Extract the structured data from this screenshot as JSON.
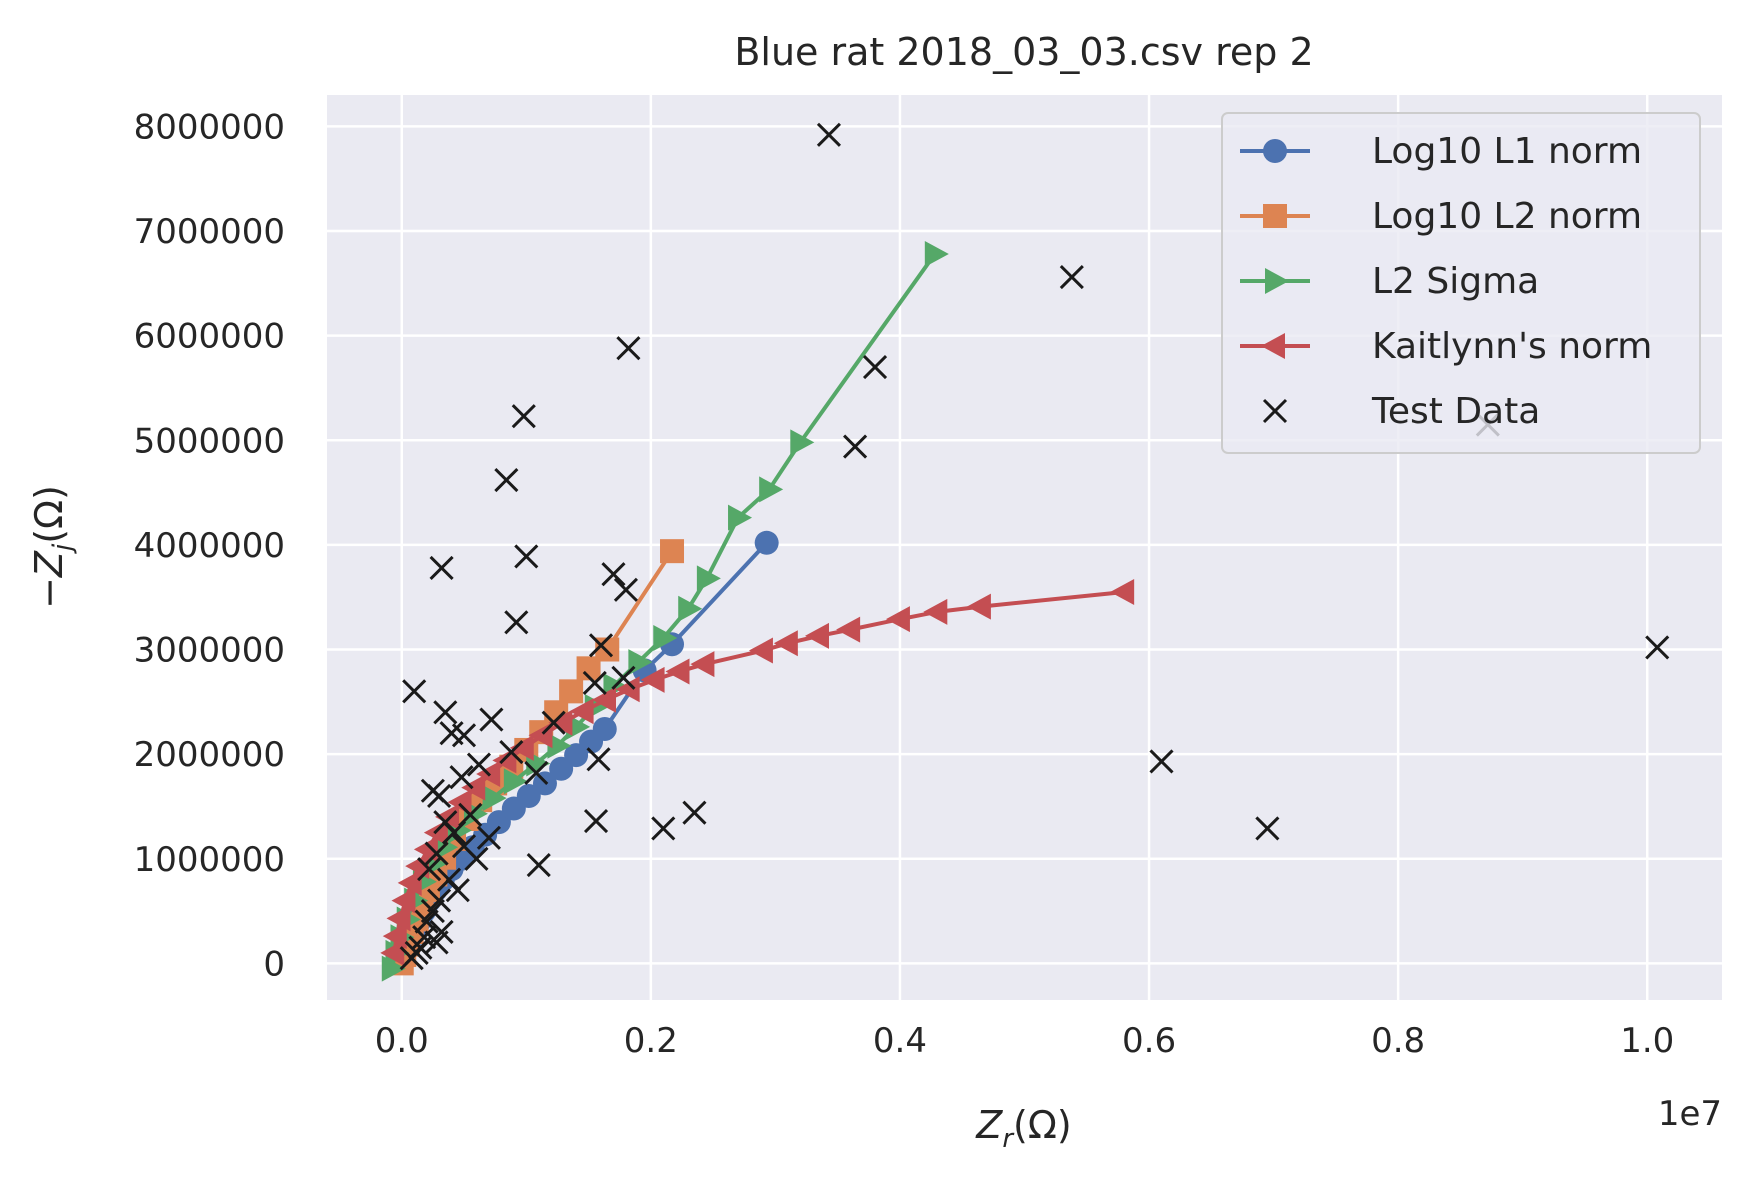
{
  "chart_data": {
    "type": "line",
    "title": "Blue rat 2018_03_03.csv rep 2",
    "xlabel_main": "Z",
    "xlabel_sub": "r",
    "xlabel_unit": "(Ω)",
    "ylabel_prefix": "−Z",
    "ylabel_sub": "j",
    "ylabel_unit": "(Ω)",
    "x_offset_text": "1e7",
    "xlim": [
      -0.06,
      1.06
    ],
    "ylim": [
      -350000,
      8300000
    ],
    "x_ticks": [
      0.0,
      0.2,
      0.4,
      0.6,
      0.8,
      1.0
    ],
    "x_tick_labels": [
      "0.0",
      "0.2",
      "0.4",
      "0.6",
      "0.8",
      "1.0"
    ],
    "y_ticks": [
      0,
      1000000,
      2000000,
      3000000,
      4000000,
      5000000,
      6000000,
      7000000,
      8000000
    ],
    "y_tick_labels": [
      "0",
      "1000000",
      "2000000",
      "3000000",
      "4000000",
      "5000000",
      "6000000",
      "7000000",
      "8000000"
    ],
    "grid": true,
    "legend_position": "top-right",
    "series": [
      {
        "name": "Log10 L1 norm",
        "color": "#4c72b0",
        "marker": "circle",
        "x": [
          0.0,
          0.003,
          0.006,
          0.01,
          0.014,
          0.018,
          0.022,
          0.027,
          0.033,
          0.04,
          0.048,
          0.057,
          0.067,
          0.078,
          0.09,
          0.102,
          0.115,
          0.128,
          0.14,
          0.152,
          0.163,
          0.195,
          0.217,
          0.293
        ],
        "y": [
          50000,
          120000,
          210000,
          300000,
          400000,
          500000,
          600000,
          700000,
          800000,
          900000,
          1000000,
          1110000,
          1230000,
          1350000,
          1480000,
          1600000,
          1720000,
          1860000,
          1990000,
          2120000,
          2240000,
          2800000,
          3050000,
          4020000
        ]
      },
      {
        "name": "Log10 L2 norm",
        "color": "#dd8452",
        "marker": "square",
        "x": [
          0.0,
          0.002,
          0.005,
          0.008,
          0.012,
          0.016,
          0.021,
          0.027,
          0.034,
          0.042,
          0.052,
          0.063,
          0.075,
          0.088,
          0.1,
          0.112,
          0.124,
          0.136,
          0.15,
          0.165,
          0.217
        ],
        "y": [
          0,
          80000,
          180000,
          300000,
          420000,
          560000,
          700000,
          850000,
          1010000,
          1190000,
          1380000,
          1560000,
          1720000,
          1880000,
          2040000,
          2210000,
          2400000,
          2600000,
          2820000,
          3000000,
          3940000
        ]
      },
      {
        "name": "L2 Sigma",
        "color": "#55a868",
        "marker": "triangle-right",
        "x": [
          -0.008,
          -0.005,
          -0.001,
          0.004,
          0.01,
          0.017,
          0.025,
          0.034,
          0.045,
          0.058,
          0.073,
          0.09,
          0.108,
          0.125,
          0.14,
          0.155,
          0.17,
          0.19,
          0.21,
          0.23,
          0.245,
          0.27,
          0.295,
          0.32,
          0.428
        ],
        "y": [
          -50000,
          100000,
          250000,
          420000,
          600000,
          780000,
          950000,
          1110000,
          1270000,
          1430000,
          1580000,
          1740000,
          1910000,
          2080000,
          2260000,
          2450000,
          2650000,
          2880000,
          3110000,
          3390000,
          3680000,
          4260000,
          4530000,
          4980000,
          6780000
        ]
      },
      {
        "name": "Kaitlynn's norm",
        "color": "#c44e52",
        "marker": "triangle-left",
        "x": [
          -0.006,
          -0.004,
          -0.001,
          0.003,
          0.008,
          0.014,
          0.021,
          0.029,
          0.038,
          0.048,
          0.059,
          0.071,
          0.084,
          0.098,
          0.113,
          0.129,
          0.146,
          0.164,
          0.183,
          0.203,
          0.223,
          0.243,
          0.29,
          0.31,
          0.335,
          0.36,
          0.4,
          0.43,
          0.465,
          0.58
        ],
        "y": [
          100000,
          260000,
          430000,
          600000,
          770000,
          930000,
          1090000,
          1250000,
          1400000,
          1540000,
          1680000,
          1810000,
          1940000,
          2060000,
          2180000,
          2300000,
          2410000,
          2520000,
          2620000,
          2710000,
          2790000,
          2860000,
          2990000,
          3060000,
          3130000,
          3190000,
          3290000,
          3360000,
          3410000,
          3550000
        ]
      },
      {
        "name": "Test Data",
        "color": "#1a1a1a",
        "marker": "x",
        "line": false,
        "x": [
          0.343,
          0.538,
          0.182,
          0.38,
          0.098,
          0.364,
          0.084,
          0.1,
          0.032,
          0.17,
          0.18,
          0.092,
          0.16,
          0.155,
          0.178,
          0.01,
          0.035,
          0.072,
          0.04,
          0.05,
          0.122,
          0.158,
          0.088,
          0.062,
          0.048,
          0.025,
          0.03,
          0.055,
          0.07,
          0.108,
          0.156,
          0.21,
          0.235,
          0.11,
          0.61,
          0.695,
          0.872,
          1.008,
          0.035,
          0.042,
          0.05,
          0.06,
          0.028,
          0.022,
          0.038,
          0.045,
          0.03,
          0.025,
          0.02,
          0.032,
          0.018,
          0.015,
          0.028,
          0.012,
          0.008
        ],
        "y": [
          7920000,
          6560000,
          5880000,
          5700000,
          5230000,
          4940000,
          4620000,
          3890000,
          3780000,
          3720000,
          3570000,
          3260000,
          3040000,
          2680000,
          2730000,
          2600000,
          2400000,
          2330000,
          2200000,
          2180000,
          2300000,
          1950000,
          2020000,
          1900000,
          1780000,
          1650000,
          1600000,
          1420000,
          1200000,
          1820000,
          1360000,
          1290000,
          1440000,
          940000,
          1930000,
          1290000,
          5150000,
          3020000,
          1350000,
          1250000,
          1120000,
          1000000,
          1050000,
          900000,
          800000,
          700000,
          600000,
          500000,
          400000,
          300000,
          250000,
          150000,
          200000,
          100000,
          50000
        ]
      }
    ]
  }
}
